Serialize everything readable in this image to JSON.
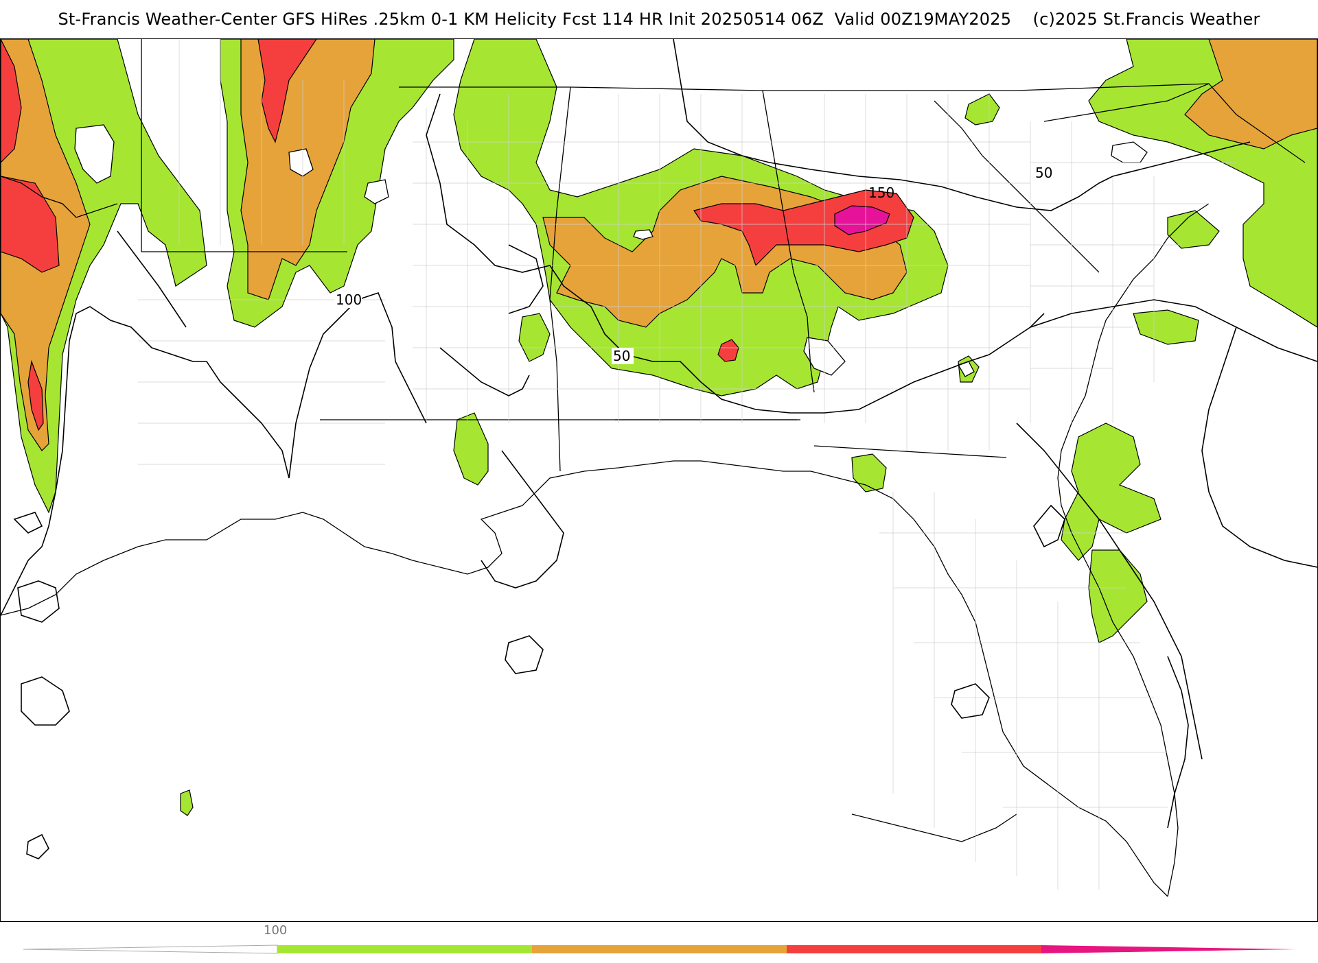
{
  "title": "St-Francis Weather-Center GFS HiRes .25km 0-1 KM Helicity Fcst 114 HR Init 20250514 06Z  Valid 00Z19MAY2025    (c)2025 St.Francis Weather",
  "contour_labels": [
    "100",
    "50",
    "150",
    "50"
  ],
  "colorbar": {
    "tick_label": "100",
    "colors": [
      "#a6e633",
      "#e6a33a",
      "#f53f3f",
      "#e6157f"
    ]
  },
  "fill_colors": {
    "green": "#a6e633",
    "orange": "#e6a33a",
    "red": "#f53f3f",
    "magenta": "#e6129a"
  }
}
